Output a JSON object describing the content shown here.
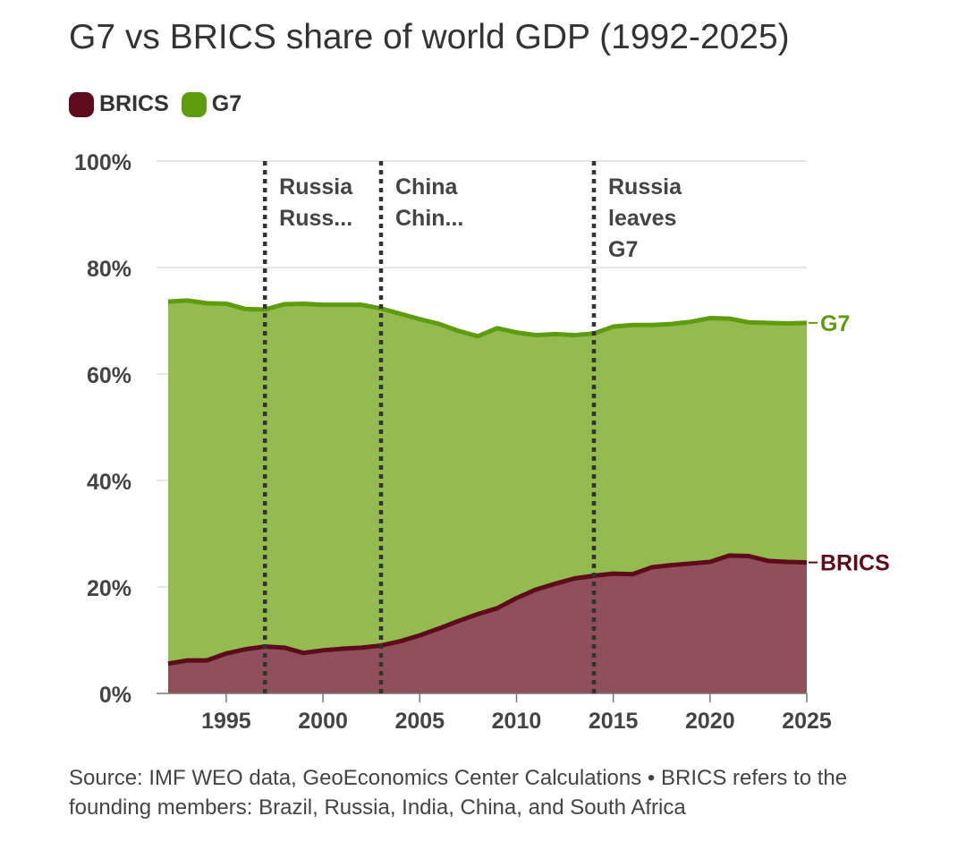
{
  "title": "G7 vs BRICS share of world GDP (1992-2025)",
  "legend": [
    {
      "label": "BRICS",
      "color": "#5e0b1c"
    },
    {
      "label": "G7",
      "color": "#5e9c0e"
    }
  ],
  "source": "Source: IMF WEO data, GeoEconomics Center Calculations • BRICS refers to the founding members: Brazil, Russia, India, China, and South Africa",
  "chart_data": {
    "type": "area",
    "title": "G7 vs BRICS share of world GDP (1992-2025)",
    "xlabel": "",
    "ylabel": "",
    "xlim": [
      1992,
      2025
    ],
    "ylim": [
      0,
      100
    ],
    "y_ticks": [
      0,
      20,
      40,
      60,
      80,
      100
    ],
    "y_tick_labels": [
      "0%",
      "20%",
      "40%",
      "60%",
      "80%",
      "100%"
    ],
    "x_ticks": [
      1995,
      2000,
      2005,
      2010,
      2015,
      2020,
      2025
    ],
    "x_tick_labels": [
      "1995",
      "2000",
      "2005",
      "2010",
      "2015",
      "2020",
      "2025"
    ],
    "grid": true,
    "x": [
      1992,
      1993,
      1994,
      1995,
      1996,
      1997,
      1998,
      1999,
      2000,
      2001,
      2002,
      2003,
      2004,
      2005,
      2006,
      2007,
      2008,
      2009,
      2010,
      2011,
      2012,
      2013,
      2014,
      2015,
      2016,
      2017,
      2018,
      2019,
      2020,
      2021,
      2022,
      2023,
      2024,
      2025
    ],
    "series": [
      {
        "name": "BRICS",
        "end_label": "BRICS",
        "color": "#5e0b1c",
        "fill": "#8f4f5b",
        "values": [
          5.6,
          6.2,
          6.2,
          7.5,
          8.3,
          8.8,
          8.6,
          7.6,
          8.1,
          8.4,
          8.6,
          9.0,
          9.8,
          10.9,
          12.2,
          13.6,
          14.9,
          16.0,
          17.9,
          19.5,
          20.6,
          21.6,
          22.1,
          22.5,
          22.4,
          23.7,
          24.1,
          24.4,
          24.7,
          25.9,
          25.8,
          24.9,
          24.7,
          24.6
        ]
      },
      {
        "name": "G7",
        "end_label": "G7",
        "color": "#5e9c0e",
        "fill": "#93bb50",
        "values": [
          73.6,
          73.8,
          73.3,
          73.2,
          72.2,
          72.1,
          73.1,
          73.2,
          73.0,
          73.0,
          73.0,
          72.3,
          71.3,
          70.3,
          69.4,
          68.1,
          67.1,
          68.6,
          67.8,
          67.3,
          67.5,
          67.3,
          67.6,
          68.9,
          69.2,
          69.2,
          69.4,
          69.8,
          70.5,
          70.4,
          69.7,
          69.6,
          69.5,
          69.6
        ]
      }
    ],
    "annotations": [
      {
        "x": 1997,
        "lines": [
          "Russia",
          "Russ..."
        ]
      },
      {
        "x": 2003,
        "lines": [
          "China",
          "Chin..."
        ]
      },
      {
        "x": 2014,
        "lines": [
          "Russia",
          "leaves",
          "G7"
        ]
      }
    ]
  }
}
